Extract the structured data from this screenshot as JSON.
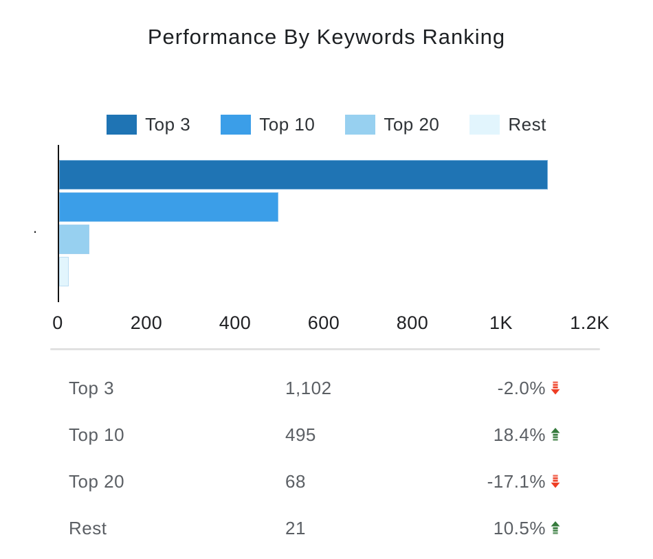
{
  "title": "Performance By Keywords Ranking",
  "colors": {
    "top3": "#1f74b4",
    "top10": "#3b9ee8",
    "top20": "#97d0f0",
    "rest": "#e2f5fd",
    "positive": "#357a3c",
    "negative": "#ee3e24",
    "axis_line": "#121212",
    "table_text": "#5b5f64",
    "title_text": "#1d2023",
    "divider": "#e1e1e1"
  },
  "chart_data": {
    "type": "bar",
    "orientation": "horizontal",
    "title": "Performance By Keywords Ranking",
    "categories": [
      "Top 3",
      "Top 10",
      "Top 20",
      "Rest"
    ],
    "values": [
      1102,
      495,
      68,
      21
    ],
    "series_colors": [
      "#1f74b4",
      "#3b9ee8",
      "#97d0f0",
      "#e2f5fd"
    ],
    "xlim": [
      0,
      1200
    ],
    "x_ticks": [
      "0",
      "200",
      "400",
      "600",
      "800",
      "1K",
      "1.2K"
    ],
    "x_tick_values": [
      0,
      200,
      400,
      600,
      800,
      1000,
      1200
    ],
    "y_axis_label": ".",
    "legend": [
      "Top 3",
      "Top 10",
      "Top 20",
      "Rest"
    ],
    "legend_position": "top",
    "grid": false
  },
  "table": {
    "rows": [
      {
        "label": "Top 3",
        "value": "1,102",
        "change": "-2.0%",
        "direction": "down"
      },
      {
        "label": "Top 10",
        "value": "495",
        "change": "18.4%",
        "direction": "up"
      },
      {
        "label": "Top 20",
        "value": "68",
        "change": "-17.1%",
        "direction": "down"
      },
      {
        "label": "Rest",
        "value": "21",
        "change": "10.5%",
        "direction": "up"
      }
    ]
  }
}
